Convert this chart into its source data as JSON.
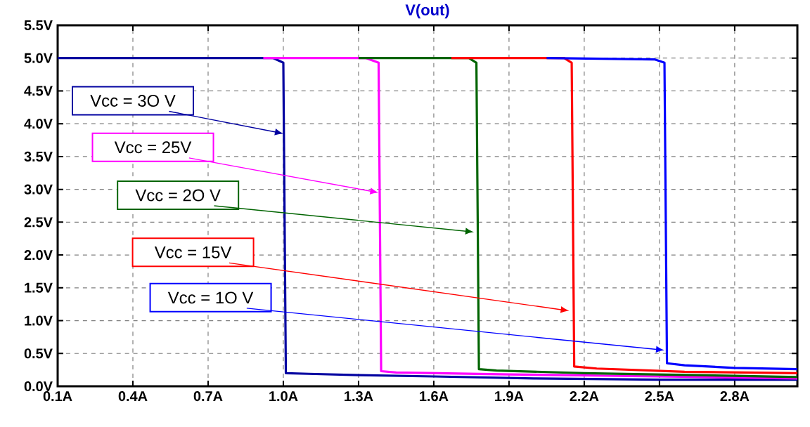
{
  "chart_data": {
    "type": "line",
    "title": "V(out)",
    "series": [
      {
        "color": "#0000a0",
        "x": [
          0.1,
          0.96,
          1.0,
          1.01,
          1.1,
          1.3,
          1.6,
          2.0,
          2.5,
          3.05
        ],
        "values": [
          5.0,
          5.0,
          4.93,
          0.2,
          0.19,
          0.17,
          0.15,
          0.12,
          0.1,
          0.1
        ]
      },
      {
        "color": "#ff00ff",
        "x": [
          0.92,
          1.33,
          1.38,
          1.39,
          1.45,
          1.9,
          2.5,
          3.05
        ],
        "values": [
          5.0,
          5.0,
          4.93,
          0.23,
          0.21,
          0.18,
          0.15,
          0.12
        ]
      },
      {
        "color": "#006400",
        "x": [
          1.3,
          1.74,
          1.77,
          1.78,
          1.85,
          2.2,
          2.8,
          3.05
        ],
        "values": [
          5.0,
          5.0,
          4.93,
          0.26,
          0.24,
          0.2,
          0.16,
          0.14
        ]
      },
      {
        "color": "#ff0000",
        "x": [
          1.67,
          2.12,
          2.15,
          2.16,
          2.25,
          2.6,
          3.05
        ],
        "values": [
          5.0,
          5.0,
          4.93,
          0.3,
          0.27,
          0.22,
          0.2
        ]
      },
      {
        "color": "#0000ff",
        "x": [
          2.05,
          2.48,
          2.52,
          2.53,
          2.6,
          2.8,
          3.05
        ],
        "values": [
          5.0,
          4.98,
          4.93,
          0.35,
          0.32,
          0.28,
          0.26
        ]
      }
    ],
    "annotations": [
      {
        "text": "Vcc = 3O V",
        "x": 1.0,
        "y": 3.85
      },
      {
        "text": "Vcc = 25V",
        "x": 1.38,
        "y": 2.95
      },
      {
        "text": "Vcc = 2O V",
        "x": 1.76,
        "y": 2.35
      },
      {
        "text": "Vcc = 15V",
        "x": 2.14,
        "y": 1.15
      },
      {
        "text": "Vcc = 1O V",
        "x": 2.52,
        "y": 0.55
      }
    ],
    "xlim": [
      0.1,
      3.05
    ],
    "ylim": [
      0.0,
      5.5
    ],
    "xticks": [
      {
        "value": 0.1,
        "label": "0.1A"
      },
      {
        "value": 0.4,
        "label": "0.4A"
      },
      {
        "value": 0.7,
        "label": "0.7A"
      },
      {
        "value": 1.0,
        "label": "1.0A"
      },
      {
        "value": 1.3,
        "label": "1.3A"
      },
      {
        "value": 1.6,
        "label": "1.6A"
      },
      {
        "value": 1.9,
        "label": "1.9A"
      },
      {
        "value": 2.2,
        "label": "2.2A"
      },
      {
        "value": 2.5,
        "label": "2.5A"
      },
      {
        "value": 2.8,
        "label": "2.8A"
      }
    ],
    "yticks": [
      {
        "value": 0.0,
        "label": "0.0V"
      },
      {
        "value": 0.5,
        "label": "0.5V"
      },
      {
        "value": 1.0,
        "label": "1.0V"
      },
      {
        "value": 1.5,
        "label": "1.5V"
      },
      {
        "value": 2.0,
        "label": "2.0V"
      },
      {
        "value": 2.5,
        "label": "2.5V"
      },
      {
        "value": 3.0,
        "label": "3.0V"
      },
      {
        "value": 3.5,
        "label": "3.5V"
      },
      {
        "value": 4.0,
        "label": "4.0V"
      },
      {
        "value": 4.5,
        "label": "4.5V"
      },
      {
        "value": 5.0,
        "label": "5.0V"
      },
      {
        "value": 5.5,
        "label": "5.5V"
      }
    ],
    "grid": true,
    "line_style": "solid",
    "marker": "none"
  }
}
